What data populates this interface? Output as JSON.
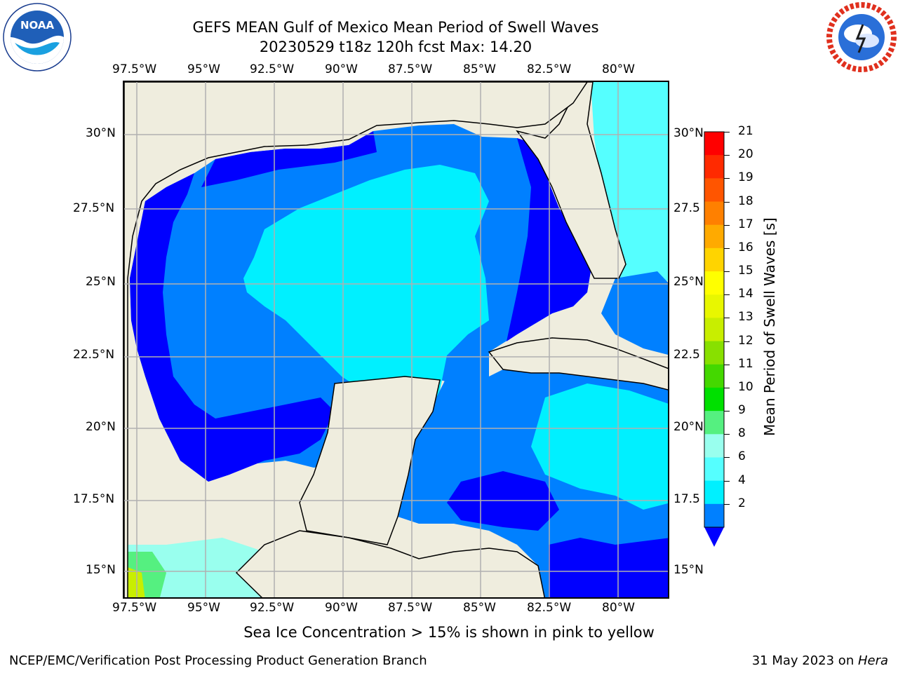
{
  "title": {
    "line1": "GEFS MEAN Gulf of Mexico Mean Period of Swell Waves",
    "line2": "20230529 t18z 120h fcst   Max: 14.20"
  },
  "logos": {
    "left": {
      "name": "noaa-logo",
      "text": "NOAA",
      "ring_text": "NATIONAL OCEANIC AND ATMOSPHERIC ADMINISTRATION · U.S. DEPARTMENT OF COMMERCE"
    },
    "right": {
      "name": "nws-logo",
      "ring_text": "NATIONAL WEATHER SERVICE"
    }
  },
  "map": {
    "lon_labels": [
      "97.5°W",
      "95°W",
      "92.5°W",
      "90°W",
      "87.5°W",
      "85°W",
      "82.5°W",
      "80°W"
    ],
    "lat_labels": [
      "30°N",
      "27.5°N",
      "25°N",
      "22.5°N",
      "20°N",
      "17.5°N",
      "15°N"
    ],
    "lat_labels_right": [
      "30°N",
      "27.5",
      "25°N",
      "22.5",
      "20°N",
      "17.5",
      "15°N"
    ],
    "land_color": "#efedde",
    "coast_color": "#000000",
    "grid_color": "#b0b0b0"
  },
  "colorbar": {
    "label": "Mean Period of Swell Waves [s]",
    "ticks": [
      "21",
      "20",
      "19",
      "18",
      "17",
      "16",
      "15",
      "14",
      "13",
      "12",
      "11",
      "10",
      "9",
      "8",
      "6",
      "4",
      "2"
    ],
    "colors": [
      "#ff0000",
      "#ff2a00",
      "#ff5500",
      "#ff8000",
      "#ffaa00",
      "#ffd400",
      "#ffff00",
      "#e8f700",
      "#c8ee00",
      "#88e000",
      "#44d800",
      "#00e000",
      "#55f080",
      "#99ffee",
      "#55ffff",
      "#00f0ff",
      "#0080ff"
    ],
    "extend_color": "#0000ff"
  },
  "note": "Sea Ice Concentration > 15% is shown in pink to yellow",
  "footer": {
    "left": "NCEP/EMC/Verification Post Processing Product Generation Branch",
    "right_date": "31 May 2023 on ",
    "right_host": "Hera"
  }
}
